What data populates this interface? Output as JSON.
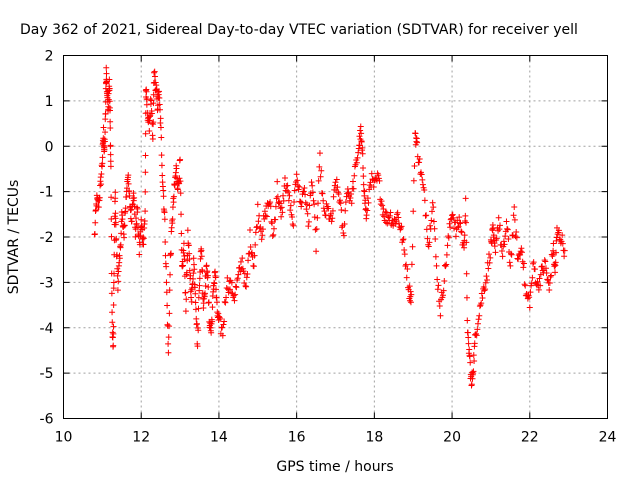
{
  "chart_data": {
    "type": "scatter",
    "title": "Day 362 of 2021, Sidereal Day-to-day VTEC variation (SDTVAR) for receiver yell",
    "xlabel": "GPS time / hours",
    "ylabel": "SDTVAR / TECUs",
    "xlim": [
      10,
      24
    ],
    "ylim": [
      -6,
      2
    ],
    "xticks": [
      10,
      12,
      14,
      16,
      18,
      20,
      22,
      24
    ],
    "yticks": [
      -6,
      -5,
      -4,
      -3,
      -2,
      -1,
      0,
      1,
      2
    ],
    "xtick_labels": [
      "10",
      "12",
      "14",
      "16",
      "18",
      "20",
      "22",
      "24"
    ],
    "ytick_labels": [
      "-6",
      "-5",
      "-4",
      "-3",
      "-2",
      "-1",
      "0",
      "1",
      "2"
    ],
    "grid": true,
    "marker": "+",
    "color": "#ff0000",
    "series": [
      {
        "name": "SDTVAR",
        "approximate_trace": [
          [
            10.8,
            -2.0
          ],
          [
            10.85,
            -1.2
          ],
          [
            10.9,
            -1.3
          ],
          [
            10.95,
            -0.9
          ],
          [
            11.0,
            -0.3
          ],
          [
            11.03,
            0.3
          ],
          [
            11.05,
            -0.2
          ],
          [
            11.08,
            0.6
          ],
          [
            11.1,
            1.7
          ],
          [
            11.12,
            1.2
          ],
          [
            11.15,
            0.9
          ],
          [
            11.18,
            1.5
          ],
          [
            11.2,
            0.5
          ],
          [
            11.22,
            -0.5
          ],
          [
            11.25,
            -3.8
          ],
          [
            11.28,
            -4.5
          ],
          [
            11.3,
            -2.7
          ],
          [
            11.33,
            -1.0
          ],
          [
            11.35,
            -2.0
          ],
          [
            11.4,
            -3.0
          ],
          [
            11.45,
            -2.5
          ],
          [
            11.5,
            -1.5
          ],
          [
            11.55,
            -2.0
          ],
          [
            11.6,
            -1.3
          ],
          [
            11.65,
            -0.6
          ],
          [
            11.7,
            -1.2
          ],
          [
            11.75,
            -1.6
          ],
          [
            11.8,
            -0.9
          ],
          [
            11.85,
            -1.9
          ],
          [
            11.9,
            -1.4
          ],
          [
            11.95,
            -2.3
          ],
          [
            12.0,
            -1.7
          ],
          [
            12.05,
            -2.1
          ],
          [
            12.1,
            -1.5
          ],
          [
            12.12,
            1.2
          ],
          [
            12.15,
            0.9
          ],
          [
            12.2,
            0.4
          ],
          [
            12.25,
            1.0
          ],
          [
            12.3,
            0.1
          ],
          [
            12.33,
            1.6
          ],
          [
            12.38,
            1.3
          ],
          [
            12.42,
            0.9
          ],
          [
            12.45,
            1.2
          ],
          [
            12.5,
            0.5
          ],
          [
            12.55,
            -0.7
          ],
          [
            12.6,
            -1.5
          ],
          [
            12.65,
            -3.0
          ],
          [
            12.7,
            -4.6
          ],
          [
            12.75,
            -2.5
          ],
          [
            12.8,
            -1.6
          ],
          [
            12.85,
            -1.0
          ],
          [
            12.9,
            -0.5
          ],
          [
            12.95,
            -0.9
          ],
          [
            13.0,
            -0.4
          ],
          [
            13.05,
            -2.8
          ],
          [
            13.1,
            -2.2
          ],
          [
            13.15,
            -3.5
          ],
          [
            13.2,
            -2.0
          ],
          [
            13.25,
            -2.7
          ],
          [
            13.3,
            -3.4
          ],
          [
            13.35,
            -2.5
          ],
          [
            13.4,
            -3.3
          ],
          [
            13.45,
            -4.4
          ],
          [
            13.5,
            -2.9
          ],
          [
            13.55,
            -2.2
          ],
          [
            13.6,
            -3.5
          ],
          [
            13.65,
            -3.0
          ],
          [
            13.7,
            -2.6
          ],
          [
            13.75,
            -3.8
          ],
          [
            13.8,
            -4.1
          ],
          [
            13.85,
            -3.3
          ],
          [
            13.9,
            -2.7
          ],
          [
            13.95,
            -3.6
          ],
          [
            14.0,
            -3.9
          ],
          [
            14.1,
            -4.1
          ],
          [
            14.2,
            -3.0
          ],
          [
            14.3,
            -3.1
          ],
          [
            14.4,
            -3.3
          ],
          [
            14.5,
            -2.9
          ],
          [
            14.6,
            -2.5
          ],
          [
            14.7,
            -3.2
          ],
          [
            14.8,
            -2.0
          ],
          [
            14.9,
            -2.6
          ],
          [
            15.0,
            -1.4
          ],
          [
            15.1,
            -1.9
          ],
          [
            15.2,
            -1.5
          ],
          [
            15.3,
            -1.2
          ],
          [
            15.4,
            -2.0
          ],
          [
            15.5,
            -0.9
          ],
          [
            15.6,
            -1.6
          ],
          [
            15.7,
            -0.8
          ],
          [
            15.8,
            -1.1
          ],
          [
            15.9,
            -1.8
          ],
          [
            16.0,
            -0.5
          ],
          [
            16.1,
            -1.3
          ],
          [
            16.2,
            -0.9
          ],
          [
            16.3,
            -1.7
          ],
          [
            16.4,
            -0.7
          ],
          [
            16.5,
            -2.2
          ],
          [
            16.6,
            -0.3
          ],
          [
            16.7,
            -1.5
          ],
          [
            16.8,
            -1.4
          ],
          [
            16.9,
            -1.7
          ],
          [
            17.0,
            -0.8
          ],
          [
            17.1,
            -1.1
          ],
          [
            17.2,
            -2.0
          ],
          [
            17.3,
            -0.9
          ],
          [
            17.4,
            -1.2
          ],
          [
            17.5,
            -0.6
          ],
          [
            17.6,
            0.0
          ],
          [
            17.65,
            0.3
          ],
          [
            17.7,
            -0.3
          ],
          [
            17.75,
            -1.1
          ],
          [
            17.8,
            -1.6
          ],
          [
            17.9,
            -0.7
          ],
          [
            18.0,
            -0.9
          ],
          [
            18.1,
            -0.7
          ],
          [
            18.2,
            -1.3
          ],
          [
            18.3,
            -1.6
          ],
          [
            18.4,
            -1.5
          ],
          [
            18.5,
            -1.7
          ],
          [
            18.6,
            -1.5
          ],
          [
            18.7,
            -1.9
          ],
          [
            18.8,
            -2.5
          ],
          [
            18.9,
            -3.2
          ],
          [
            18.95,
            -3.3
          ],
          [
            19.05,
            0.3
          ],
          [
            19.1,
            0.0
          ],
          [
            19.2,
            -0.6
          ],
          [
            19.3,
            -1.2
          ],
          [
            19.4,
            -2.2
          ],
          [
            19.5,
            -1.1
          ],
          [
            19.6,
            -2.7
          ],
          [
            19.7,
            -3.6
          ],
          [
            19.8,
            -2.9
          ],
          [
            19.9,
            -2.1
          ],
          [
            20.0,
            -1.4
          ],
          [
            20.1,
            -1.9
          ],
          [
            20.2,
            -1.6
          ],
          [
            20.3,
            -2.3
          ],
          [
            20.35,
            -1.3
          ],
          [
            20.4,
            -4.2
          ],
          [
            20.45,
            -4.6
          ],
          [
            20.5,
            -5.3
          ],
          [
            20.55,
            -4.8
          ],
          [
            20.6,
            -4.2
          ],
          [
            20.7,
            -3.6
          ],
          [
            20.8,
            -3.2
          ],
          [
            20.9,
            -2.8
          ],
          [
            21.0,
            -2.2
          ],
          [
            21.05,
            -1.9
          ],
          [
            21.1,
            -2.3
          ],
          [
            21.2,
            -1.6
          ],
          [
            21.3,
            -2.5
          ],
          [
            21.4,
            -1.7
          ],
          [
            21.5,
            -2.6
          ],
          [
            21.6,
            -1.5
          ],
          [
            21.7,
            -2.5
          ],
          [
            21.8,
            -2.2
          ],
          [
            21.9,
            -3.3
          ],
          [
            22.0,
            -3.4
          ],
          [
            22.1,
            -2.6
          ],
          [
            22.2,
            -3.1
          ],
          [
            22.3,
            -2.8
          ],
          [
            22.4,
            -2.6
          ],
          [
            22.5,
            -3.2
          ],
          [
            22.6,
            -2.2
          ],
          [
            22.65,
            -2.8
          ],
          [
            22.7,
            -1.9
          ],
          [
            22.8,
            -2.0
          ],
          [
            22.9,
            -2.3
          ]
        ]
      }
    ]
  }
}
